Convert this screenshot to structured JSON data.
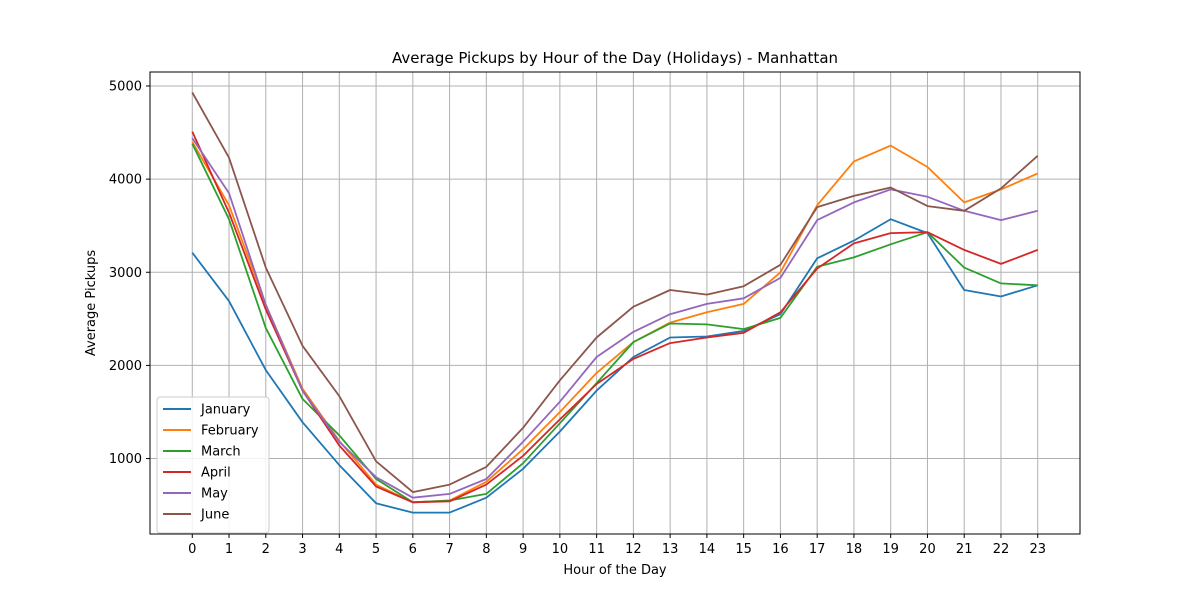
{
  "chart_data": {
    "type": "line",
    "title": "Average Pickups by Hour of the Day (Holidays) - Manhattan",
    "xlabel": "Hour of the Day",
    "ylabel": "Average Pickups",
    "x": [
      0,
      1,
      2,
      3,
      4,
      5,
      6,
      7,
      8,
      9,
      10,
      11,
      12,
      13,
      14,
      15,
      16,
      17,
      18,
      19,
      20,
      21,
      22,
      23
    ],
    "xlim": [
      -1.15,
      24.15
    ],
    "ylim": [
      190,
      5150
    ],
    "yticks": [
      1000,
      2000,
      3000,
      4000,
      5000
    ],
    "grid": true,
    "legend_position": "lower-left",
    "series": [
      {
        "name": "January",
        "color": "#1f77b4",
        "values": [
          3210,
          2690,
          1950,
          1390,
          930,
          520,
          420,
          420,
          580,
          890,
          1290,
          1730,
          2090,
          2300,
          2310,
          2370,
          2550,
          3150,
          3340,
          3570,
          3420,
          2810,
          2740,
          2860
        ]
      },
      {
        "name": "February",
        "color": "#ff7f0e",
        "values": [
          4400,
          3720,
          2650,
          1750,
          1190,
          720,
          530,
          550,
          750,
          1100,
          1500,
          1920,
          2250,
          2460,
          2570,
          2660,
          3000,
          3720,
          4190,
          4360,
          4130,
          3750,
          3890,
          4060
        ]
      },
      {
        "name": "March",
        "color": "#2ca02c",
        "values": [
          4380,
          3570,
          2400,
          1640,
          1250,
          780,
          530,
          550,
          620,
          950,
          1380,
          1810,
          2250,
          2450,
          2440,
          2390,
          2510,
          3060,
          3160,
          3300,
          3430,
          3050,
          2880,
          2860
        ]
      },
      {
        "name": "April",
        "color": "#d62728",
        "values": [
          4510,
          3640,
          2600,
          1730,
          1140,
          700,
          530,
          540,
          720,
          1030,
          1420,
          1800,
          2070,
          2240,
          2300,
          2350,
          2570,
          3040,
          3310,
          3420,
          3430,
          3240,
          3090,
          3240
        ]
      },
      {
        "name": "May",
        "color": "#9467bd",
        "values": [
          4440,
          3850,
          2650,
          1730,
          1180,
          800,
          580,
          620,
          780,
          1180,
          1610,
          2090,
          2360,
          2550,
          2660,
          2720,
          2940,
          3560,
          3750,
          3890,
          3810,
          3660,
          3560,
          3660
        ]
      },
      {
        "name": "June",
        "color": "#8c564b",
        "values": [
          4930,
          4230,
          3050,
          2210,
          1670,
          970,
          640,
          720,
          910,
          1330,
          1840,
          2300,
          2630,
          2810,
          2760,
          2850,
          3080,
          3700,
          3820,
          3910,
          3710,
          3660,
          3900,
          4250
        ]
      }
    ]
  }
}
